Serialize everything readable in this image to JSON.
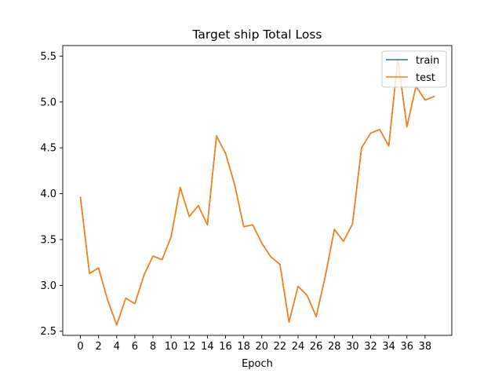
{
  "chart_data": {
    "type": "line",
    "title": "Target ship Total Loss",
    "xlabel": "Epoch",
    "ylabel": "",
    "xlim": [
      -1.95,
      40.95
    ],
    "ylim": [
      2.455,
      5.615
    ],
    "x_ticks": [
      0,
      2,
      4,
      6,
      8,
      10,
      12,
      14,
      16,
      18,
      20,
      22,
      24,
      26,
      28,
      30,
      32,
      34,
      36,
      38
    ],
    "y_ticks": [
      2.5,
      3.0,
      3.5,
      4.0,
      4.5,
      5.0,
      5.5
    ],
    "y_tick_labels": [
      "2.5",
      "3.0",
      "3.5",
      "4.0",
      "4.5",
      "5.0",
      "5.5"
    ],
    "grid": false,
    "legend_position": "upper right",
    "x": [
      0,
      1,
      2,
      3,
      4,
      5,
      6,
      7,
      8,
      9,
      10,
      11,
      12,
      13,
      14,
      15,
      16,
      17,
      18,
      19,
      20,
      21,
      22,
      23,
      24,
      25,
      26,
      27,
      28,
      29,
      30,
      31,
      32,
      33,
      34,
      35,
      36,
      37,
      38,
      39
    ],
    "series": [
      {
        "name": "train",
        "color": "#1f77b4",
        "values": [
          3.96,
          3.13,
          3.19,
          2.84,
          2.57,
          2.86,
          2.8,
          3.11,
          3.32,
          3.28,
          3.53,
          4.07,
          3.75,
          3.87,
          3.66,
          4.63,
          4.44,
          4.1,
          3.64,
          3.66,
          3.46,
          3.31,
          3.23,
          2.6,
          2.99,
          2.89,
          2.66,
          3.1,
          3.61,
          3.48,
          3.67,
          4.5,
          4.66,
          4.7,
          4.52,
          5.47,
          4.73,
          5.17,
          5.02,
          5.06
        ]
      },
      {
        "name": "test",
        "color": "#ff7f0e",
        "values": [
          3.96,
          3.13,
          3.19,
          2.84,
          2.57,
          2.86,
          2.8,
          3.11,
          3.32,
          3.28,
          3.53,
          4.07,
          3.75,
          3.87,
          3.66,
          4.63,
          4.44,
          4.1,
          3.64,
          3.66,
          3.46,
          3.31,
          3.23,
          2.6,
          2.99,
          2.89,
          2.66,
          3.1,
          3.61,
          3.48,
          3.67,
          4.5,
          4.66,
          4.7,
          4.52,
          5.47,
          4.73,
          5.17,
          5.02,
          5.06
        ]
      }
    ]
  }
}
